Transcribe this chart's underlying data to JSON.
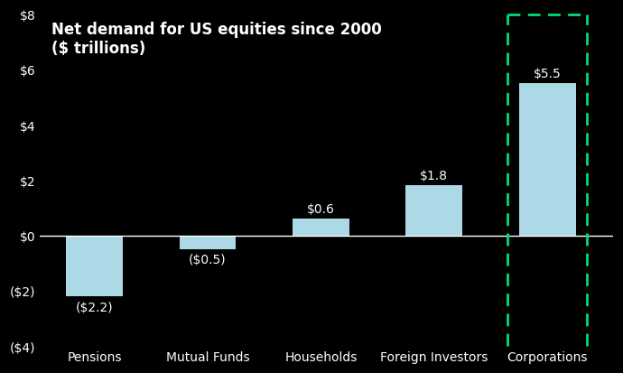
{
  "categories": [
    "Pensions",
    "Mutual Funds",
    "Households",
    "Foreign Investors",
    "Corporations"
  ],
  "values": [
    -2.2,
    -0.5,
    0.6,
    1.8,
    5.5
  ],
  "labels": [
    "($2.2)",
    "($0.5)",
    "$0.6",
    "$1.8",
    "$5.5"
  ],
  "bar_color": "#add8e6",
  "background_color": "#000000",
  "text_color": "#ffffff",
  "dashed_box_color": "#00dd77",
  "title_line1": "Net demand for US equities since 2000",
  "title_line2": "($ trillions)",
  "ylim": [
    -4,
    8
  ],
  "yticks": [
    -4,
    -2,
    0,
    2,
    4,
    6,
    8
  ],
  "ytick_labels": [
    "($4)",
    "($2)",
    "$0",
    "$2",
    "$4",
    "$6",
    "$8"
  ],
  "title_fontsize": 12,
  "label_fontsize": 10,
  "tick_fontsize": 10,
  "bar_width": 0.5
}
